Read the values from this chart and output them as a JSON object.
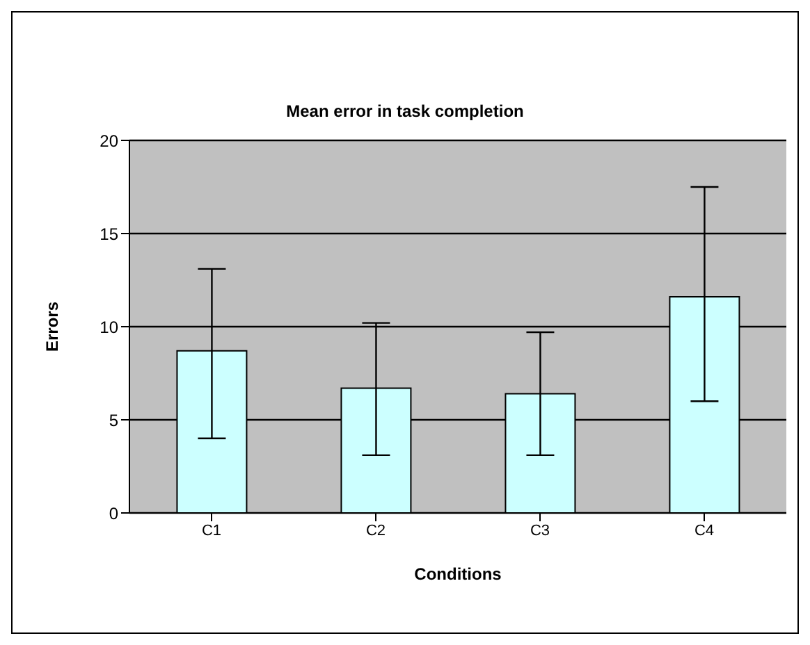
{
  "chart_data": {
    "type": "bar",
    "title": "Mean error in task completion",
    "xlabel": "Conditions",
    "ylabel": "Errors",
    "categories": [
      "C1",
      "C2",
      "C3",
      "C4"
    ],
    "values": [
      8.7,
      6.7,
      6.4,
      11.6
    ],
    "errors": [
      [
        4.0,
        13.1
      ],
      [
        3.1,
        10.2
      ],
      [
        3.1,
        9.7
      ],
      [
        6.0,
        17.5
      ]
    ],
    "color": "#ccffff",
    "ylim": [
      0,
      20
    ],
    "yticks": [
      0,
      5,
      10,
      15,
      20
    ],
    "grid": "y"
  }
}
